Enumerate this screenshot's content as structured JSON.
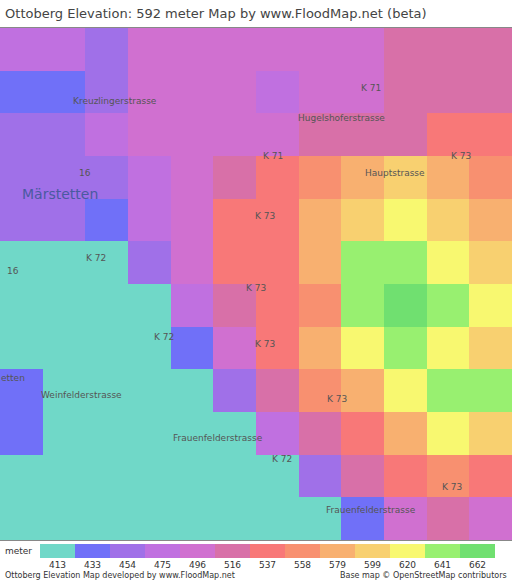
{
  "chart_data": {
    "type": "heatmap",
    "title": "Ottoberg Elevation: 592 meter Map by www.FloodMap.net (beta)",
    "z": [
      [
        475,
        475,
        454,
        496,
        496,
        496,
        496,
        496,
        496,
        516,
        516,
        516
      ],
      [
        433,
        433,
        454,
        496,
        496,
        496,
        475,
        496,
        496,
        516,
        516,
        516
      ],
      [
        454,
        454,
        475,
        496,
        496,
        496,
        496,
        516,
        516,
        516,
        537,
        537
      ],
      [
        454,
        454,
        454,
        475,
        496,
        516,
        537,
        558,
        579,
        599,
        579,
        558
      ],
      [
        454,
        454,
        433,
        475,
        496,
        537,
        537,
        579,
        599,
        620,
        599,
        579
      ],
      [
        413,
        413,
        413,
        454,
        496,
        537,
        537,
        579,
        641,
        641,
        620,
        599
      ],
      [
        413,
        413,
        413,
        413,
        475,
        516,
        537,
        558,
        641,
        662,
        641,
        620
      ],
      [
        413,
        413,
        413,
        413,
        433,
        496,
        537,
        579,
        620,
        641,
        620,
        599
      ],
      [
        433,
        413,
        413,
        413,
        413,
        454,
        516,
        558,
        579,
        620,
        641,
        641
      ],
      [
        433,
        413,
        413,
        413,
        413,
        413,
        475,
        516,
        537,
        579,
        620,
        599
      ],
      [
        413,
        413,
        413,
        413,
        413,
        413,
        413,
        454,
        516,
        537,
        558,
        537
      ],
      [
        413,
        413,
        413,
        413,
        413,
        413,
        413,
        413,
        433,
        496,
        516,
        496
      ]
    ],
    "xlim": [
      -0.5,
      11.5
    ],
    "ylim": [
      11.5,
      -0.5
    ],
    "tick_labels": false,
    "colorbar": {
      "title": "meter",
      "range": [
        413,
        662
      ],
      "ticks": [
        413,
        433,
        454,
        475,
        496,
        516,
        537,
        558,
        579,
        599,
        620,
        641,
        662
      ],
      "colors": [
        "#70d8c8",
        "#7070f8",
        "#a070e8",
        "#c070e0",
        "#d070d0",
        "#d870a8",
        "#f87878",
        "#f89070",
        "#f8b070",
        "#f8d070",
        "#f8f870",
        "#98f070",
        "#70e070"
      ]
    },
    "annotations": [
      {
        "text": "K 71",
        "x": 8.2,
        "y": 0.9
      },
      {
        "text": "K 71",
        "x": 5.9,
        "y": 2.5
      },
      {
        "text": "Hugelshoferstrasse",
        "x": 7.5,
        "y": 1.6
      },
      {
        "text": "Hauptstrasse",
        "x": 8.75,
        "y": 2.9
      },
      {
        "text": "K 73",
        "x": 10.3,
        "y": 2.5
      },
      {
        "text": "K 73",
        "x": 5.7,
        "y": 3.9
      },
      {
        "text": "K 73",
        "x": 5.5,
        "y": 5.6
      },
      {
        "text": "K 73",
        "x": 5.7,
        "y": 6.9
      },
      {
        "text": "K 73",
        "x": 7.4,
        "y": 8.2
      },
      {
        "text": "K 73",
        "x": 10.1,
        "y": 10.25
      },
      {
        "text": "K 72",
        "x": 1.75,
        "y": 4.9
      },
      {
        "text": "K 72",
        "x": 3.35,
        "y": 6.75
      },
      {
        "text": "K 72",
        "x": 6.1,
        "y": 9.6
      },
      {
        "text": "16",
        "x": 1.5,
        "y": 2.9
      },
      {
        "text": "16",
        "x": -0.2,
        "y": 5.2
      },
      {
        "text": "Märstetten",
        "x": 0.9,
        "y": 3.4
      },
      {
        "text": "Kreuzlingerstrasse",
        "x": 2.2,
        "y": 1.2
      },
      {
        "text": "etten",
        "x": -0.2,
        "y": 7.7
      },
      {
        "text": "Weinfelderstrasse",
        "x": 1.4,
        "y": 8.1
      },
      {
        "text": "Frauenfelderstrasse",
        "x": 4.6,
        "y": 9.1
      },
      {
        "text": "Frauenfelderstrasse",
        "x": 8.2,
        "y": 10.8
      }
    ],
    "footer_left": "Ottoberg Elevation Map developed by www.FloodMap.net",
    "footer_right": "Base map © OpenStreetMap contributors"
  }
}
